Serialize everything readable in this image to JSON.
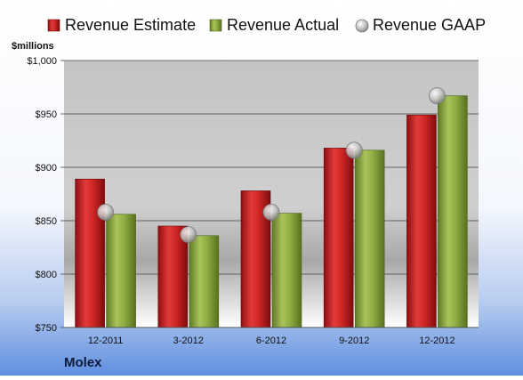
{
  "chart_data": {
    "type": "bar",
    "unit_label": "$millions",
    "company": "Molex",
    "categories": [
      "12-2011",
      "3-2012",
      "6-2012",
      "9-2012",
      "12-2012"
    ],
    "series": [
      {
        "name": "Revenue Estimate",
        "type": "bar",
        "color": "#cc2020",
        "values": [
          889,
          845,
          878,
          918,
          949
        ]
      },
      {
        "name": "Revenue Actual",
        "type": "bar",
        "color": "#8aa83e",
        "values": [
          856,
          836,
          857,
          916,
          967
        ]
      },
      {
        "name": "Revenue GAAP",
        "type": "marker",
        "color": "#b8b8b8",
        "values": [
          858,
          837,
          858,
          916,
          967
        ]
      }
    ],
    "y_ticks": [
      "$750",
      "$800",
      "$850",
      "$900",
      "$950",
      "$1,000"
    ],
    "y_tick_values": [
      750,
      800,
      850,
      900,
      950,
      1000
    ],
    "ylim": [
      750,
      1000
    ],
    "grid": true,
    "legend_position": "top"
  }
}
